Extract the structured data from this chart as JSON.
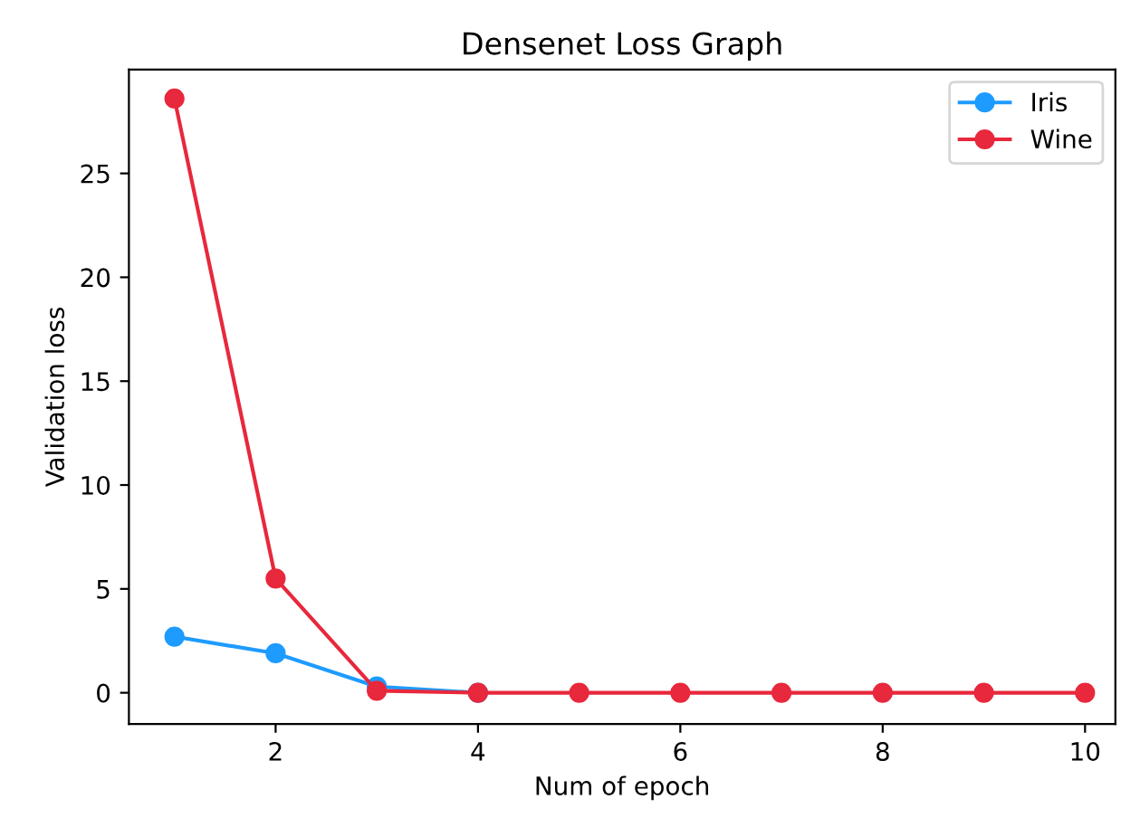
{
  "chart_data": {
    "type": "line",
    "title": "Densenet Loss Graph",
    "xlabel": "Num of epoch",
    "ylabel": "Validation loss",
    "x": [
      1,
      2,
      3,
      4,
      5,
      6,
      7,
      8,
      9,
      10
    ],
    "series": [
      {
        "name": "Iris",
        "color": "#1e9bff",
        "values": [
          2.7,
          1.9,
          0.3,
          0,
          null,
          null,
          null,
          null,
          null,
          null
        ]
      },
      {
        "name": "Wine",
        "color": "#e8283c",
        "values": [
          28.6,
          5.5,
          0.1,
          0,
          0,
          0,
          0,
          0,
          0,
          0
        ]
      }
    ],
    "xlim": [
      0.55,
      10.3
    ],
    "ylim": [
      -1.5,
      30
    ],
    "xticks": [
      2,
      4,
      6,
      8,
      10
    ],
    "yticks": [
      0,
      5,
      10,
      15,
      20,
      25
    ],
    "grid": false,
    "legend": "top right",
    "marker": "circle",
    "line_style": "solid"
  }
}
